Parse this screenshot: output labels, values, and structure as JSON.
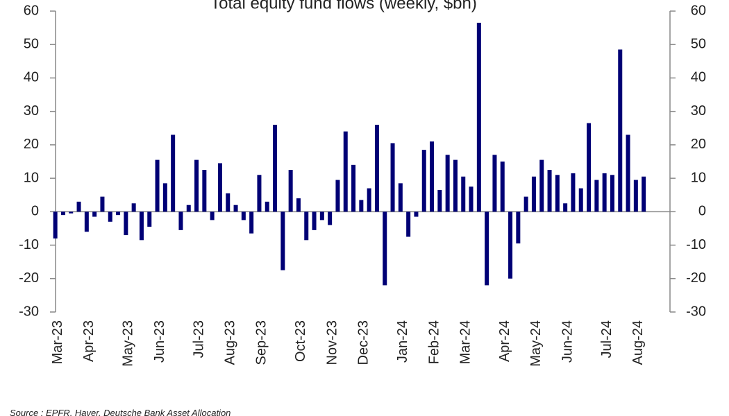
{
  "chart_data": {
    "type": "bar",
    "title": "Total equity fund flows (weekly, $bn)",
    "source": "Source : EPFR, Haver, Deutsche Bank Asset Allocation",
    "color": "#000075",
    "categories": [
      "Mar-23",
      null,
      null,
      null,
      "Apr-23",
      null,
      null,
      null,
      null,
      "May-23",
      null,
      null,
      null,
      "Jun-23",
      null,
      null,
      null,
      null,
      "Jul-23",
      null,
      null,
      null,
      "Aug-23",
      null,
      null,
      null,
      "Sep-23",
      null,
      null,
      null,
      null,
      "Oct-23",
      null,
      null,
      null,
      "Nov-23",
      null,
      null,
      null,
      "Dec-23",
      null,
      null,
      null,
      null,
      "Jan-24",
      null,
      null,
      null,
      "Feb-24",
      null,
      null,
      null,
      "Mar-24",
      null,
      null,
      null,
      null,
      "Apr-24",
      null,
      null,
      null,
      "May-24",
      null,
      null,
      null,
      "Jun-24",
      null,
      null,
      null,
      null,
      "Jul-24",
      null,
      null,
      null,
      "Aug-24",
      null
    ],
    "values": [
      -8,
      -1,
      -0.5,
      3,
      -6,
      -1.5,
      4.5,
      -3,
      -1,
      -7,
      2.5,
      -8.5,
      -4.5,
      15.5,
      8.5,
      23,
      -5.5,
      2,
      15.5,
      12.5,
      -2.5,
      14.5,
      5.5,
      2,
      -2.5,
      -6.5,
      11,
      3,
      26,
      -17.5,
      12.5,
      4,
      -8.5,
      -5.5,
      -2.5,
      -4,
      9.5,
      24,
      14,
      3.5,
      7,
      26,
      -22,
      20.5,
      8.5,
      -7.5,
      -1.5,
      18.5,
      21,
      6.5,
      17,
      15.5,
      10.5,
      7.5,
      56.5,
      -22,
      17,
      15,
      -20,
      -9.5,
      4.5,
      10.5,
      15.5,
      12.5,
      11,
      2.5,
      11.5,
      7,
      26.5,
      9.5,
      11.5,
      11,
      48.5,
      23,
      9.5,
      10.5
    ],
    "ylim": [
      -30,
      60
    ],
    "yticks": [
      -30,
      -20,
      -10,
      0,
      10,
      20,
      30,
      40,
      50,
      60
    ],
    "y2lim": [
      -30,
      60
    ],
    "y2ticks": [
      -30,
      -20,
      -10,
      0,
      10,
      20,
      30,
      40,
      50,
      60
    ]
  }
}
